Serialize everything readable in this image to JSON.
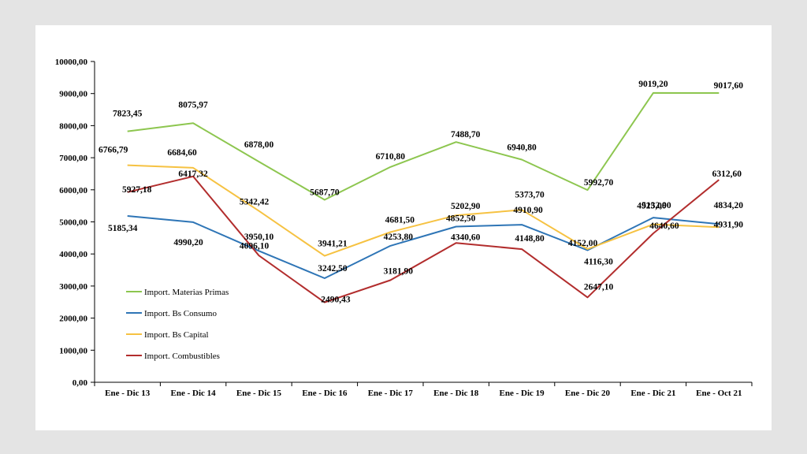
{
  "chart_data": {
    "type": "line",
    "categories": [
      "Ene - Dic 13",
      "Ene - Dic 14",
      "Ene - Dic 15",
      "Ene - Dic 16",
      "Ene - Dic 17",
      "Ene - Dic 18",
      "Ene - Dic 19",
      "Ene - Dic 20",
      "Ene - Dic 21",
      "Ene - Oct 21"
    ],
    "ylim": [
      0,
      10000
    ],
    "y_ticks": [
      "0,00",
      "1000,00",
      "2000,00",
      "3000,00",
      "4000,00",
      "5000,00",
      "6000,00",
      "7000,00",
      "8000,00",
      "9000,00",
      "10000,00"
    ],
    "grid": false,
    "legend": "inside-bottom-left",
    "series": [
      {
        "name": "Import. Materias Primas",
        "color": "#8dc64f",
        "values": [
          7823.45,
          8075.97,
          6878.0,
          5687.7,
          6710.8,
          7488.7,
          6940.8,
          5992.7,
          9019.2,
          9017.6
        ],
        "labels": [
          "7823,45",
          "8075,97",
          "6878,00",
          "5687,70",
          "6710,80",
          "7488,70",
          "6940,80",
          "5992,70",
          "9019,20",
          "9017,60"
        ]
      },
      {
        "name": "Import. Bs Consumo",
        "color": "#2e75b6",
        "values": [
          5185.34,
          4990.2,
          4096.1,
          3242.5,
          4253.8,
          4852.5,
          4910.9,
          4116.3,
          5132.9,
          4931.9
        ],
        "labels": [
          "5185,34",
          "4990,20",
          "4096,10",
          "3242,50",
          "4253,80",
          "4852,50",
          "4910,90",
          "4116,30",
          "5132,90",
          "4931,90"
        ]
      },
      {
        "name": "Import. Bs Capital",
        "color": "#f6c242",
        "values": [
          6766.79,
          6684.6,
          5342.42,
          3941.21,
          4681.5,
          5202.9,
          5373.7,
          4152.0,
          4925.0,
          4834.2
        ],
        "labels": [
          "6766,79",
          "6684,60",
          "5342,42",
          "3941,21",
          "4681,50",
          "5202,90",
          "5373,70",
          "4152,00",
          "4925,00",
          "4834,20"
        ]
      },
      {
        "name": "Import. Combustibles",
        "color": "#b22d2d",
        "values": [
          5927.18,
          6417.32,
          3950.1,
          2490.43,
          3181.9,
          4340.6,
          4148.8,
          2647.1,
          4640.6,
          6312.6
        ],
        "labels": [
          "5927,18",
          "6417,32",
          "3950,10",
          "2490,43",
          "3181,90",
          "4340,60",
          "4148,80",
          "2647,10",
          "4640,60",
          "6312,60"
        ]
      }
    ]
  }
}
